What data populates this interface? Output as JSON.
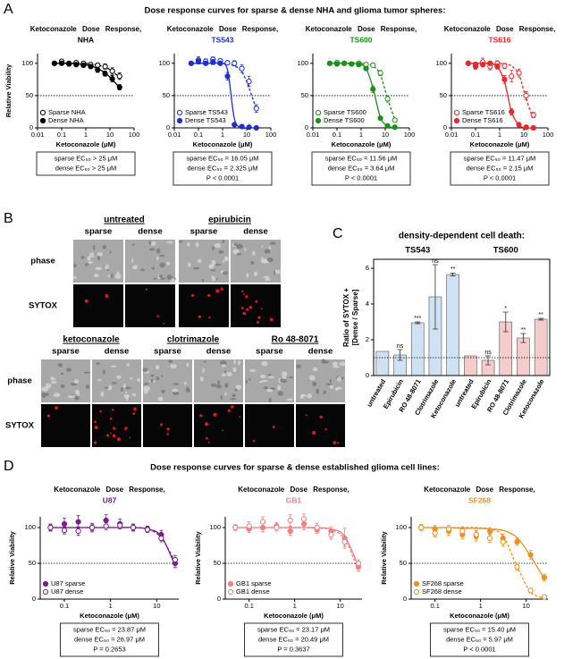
{
  "figure": {
    "panel_labels": [
      "A",
      "B",
      "C",
      "D"
    ],
    "heading_A": "Dose response curves for sparse & dense NHA and glioma tumor spheres:",
    "heading_D": "Dose response curves for sparse & dense established glioma cell lines:",
    "panel_B": {
      "rows": [
        "phase",
        "SYTOX"
      ],
      "columns": [
        "sparse",
        "dense"
      ],
      "treatments": [
        "untreated",
        "epirubicin",
        "ketoconazole",
        "clotrimazole",
        "Ro 48-8071"
      ]
    }
  },
  "chart_data": [
    {
      "type": "dose",
      "title": "Ketoconazole Dose Response,",
      "subtitle": "NHA",
      "subtitle_color": "#000000",
      "xlabel": "Ketoconazole (μM)",
      "ylabel": "Relative Viability",
      "log_x": true,
      "xlim": [
        0.01,
        100
      ],
      "xticks": [
        0.01,
        0.1,
        1,
        10,
        100
      ],
      "ylim": [
        0,
        115
      ],
      "yticks": [
        0,
        50,
        100
      ],
      "reference_line": 50,
      "legend": "lower left",
      "x": [
        0.05,
        0.1,
        0.2,
        0.4,
        0.8,
        1.6,
        3.1,
        6.3,
        12.5,
        25
      ],
      "series": [
        {
          "name": "Sparse NHA",
          "color": "#000000",
          "marker": "open",
          "dashed": true,
          "values": [
            100,
            103,
            100,
            101,
            100,
            98,
            97,
            95,
            88,
            80
          ],
          "errors": [
            2,
            3,
            2,
            3,
            2,
            3,
            3,
            4,
            5,
            5
          ],
          "fit": [
            100,
            100,
            100,
            100,
            100,
            99,
            97,
            94,
            88,
            78
          ]
        },
        {
          "name": "Dense NHA",
          "color": "#000000",
          "marker": "filled",
          "dashed": false,
          "values": [
            100,
            100,
            99,
            98,
            97,
            95,
            90,
            84,
            76,
            63
          ],
          "errors": [
            2,
            2,
            3,
            2,
            3,
            3,
            4,
            4,
            5,
            4
          ],
          "fit": [
            100,
            100,
            100,
            99,
            98,
            96,
            92,
            85,
            75,
            62
          ]
        }
      ],
      "annotations": [
        "sparse EC₅₀ > 25 μM",
        "dense EC₅₀ > 25 μM"
      ]
    },
    {
      "type": "dose",
      "title": "Ketoconazole Dose Response,",
      "subtitle": "TS543",
      "subtitle_color": "#1f2fd0",
      "xlabel": "Ketoconazole (μM)",
      "log_x": true,
      "xlim": [
        0.01,
        100
      ],
      "xticks": [
        0.01,
        0.1,
        1,
        10,
        100
      ],
      "ylim": [
        0,
        115
      ],
      "yticks": [
        0,
        50,
        100
      ],
      "reference_line": 50,
      "legend": "lower left",
      "x": [
        0.05,
        0.1,
        0.2,
        0.4,
        0.8,
        1.6,
        3.1,
        6.3,
        12.5,
        25
      ],
      "series": [
        {
          "name": "Sparse TS543",
          "color": "#1f2fd0",
          "marker": "open",
          "dashed": true,
          "values": [
            100,
            105,
            103,
            106,
            104,
            101,
            100,
            92,
            72,
            30
          ],
          "errors": [
            3,
            5,
            4,
            4,
            3,
            3,
            4,
            6,
            8,
            6
          ],
          "fit": [
            100,
            100,
            100,
            100,
            100,
            99,
            96,
            87,
            62,
            29
          ]
        },
        {
          "name": "Dense TS543",
          "color": "#1f2fd0",
          "marker": "filled",
          "dashed": false,
          "values": [
            100,
            103,
            100,
            102,
            100,
            80,
            5,
            2,
            1,
            0
          ],
          "errors": [
            3,
            4,
            3,
            4,
            3,
            6,
            2,
            1,
            1,
            1
          ],
          "fit": [
            100,
            100,
            100,
            100,
            100,
            90,
            14,
            0,
            0,
            0
          ]
        }
      ],
      "annotations": [
        "sparse EC₅₀ = 16.05 μM",
        "dense EC₅₀ = 2.325 μM",
        "P < 0.0001"
      ]
    },
    {
      "type": "dose",
      "title": "Ketoconazole Dose Response,",
      "subtitle": "TS600",
      "subtitle_color": "#1a8f1a",
      "xlabel": "Ketoconazole (μM)",
      "log_x": true,
      "xlim": [
        0.01,
        100
      ],
      "xticks": [
        0.01,
        0.1,
        1,
        10,
        100
      ],
      "ylim": [
        0,
        115
      ],
      "yticks": [
        0,
        50,
        100
      ],
      "reference_line": 50,
      "legend": "lower left",
      "x": [
        0.05,
        0.1,
        0.2,
        0.4,
        0.8,
        1.6,
        3.1,
        6.3,
        12.5,
        25
      ],
      "series": [
        {
          "name": "Sparse TS600",
          "color": "#1a8f1a",
          "marker": "open",
          "dashed": true,
          "values": [
            100,
            101,
            100,
            99,
            100,
            98,
            97,
            85,
            45,
            12
          ],
          "errors": [
            2,
            3,
            2,
            2,
            3,
            3,
            3,
            4,
            5,
            3
          ],
          "fit": [
            100,
            100,
            100,
            100,
            100,
            99,
            96,
            82,
            45,
            13
          ]
        },
        {
          "name": "Dense TS600",
          "color": "#1a8f1a",
          "marker": "filled",
          "dashed": false,
          "values": [
            100,
            99,
            100,
            99,
            98,
            92,
            60,
            15,
            3,
            1
          ],
          "errors": [
            2,
            3,
            2,
            3,
            2,
            3,
            5,
            3,
            1,
            1
          ],
          "fit": [
            100,
            100,
            100,
            100,
            99,
            92,
            62,
            16,
            3,
            0
          ]
        }
      ],
      "annotations": [
        "sparse EC₅₀ = 11.56 μM",
        "dense EC₅₀ = 3.64 μM",
        "P < 0.0001"
      ]
    },
    {
      "type": "dose",
      "title": "Ketoconazole Dose Response,",
      "subtitle": "TS616",
      "subtitle_color": "#e8282c",
      "xlabel": "Ketoconazole (μM)",
      "log_x": true,
      "xlim": [
        0.01,
        100
      ],
      "xticks": [
        0.01,
        0.1,
        1,
        10,
        100
      ],
      "ylim": [
        0,
        115
      ],
      "yticks": [
        0,
        50,
        100
      ],
      "reference_line": 50,
      "legend": "lower left",
      "x": [
        0.05,
        0.1,
        0.2,
        0.4,
        0.8,
        1.6,
        3.1,
        6.3,
        12.5,
        25
      ],
      "series": [
        {
          "name": "Sparse TS616",
          "color": "#e8282c",
          "marker": "open",
          "dashed": true,
          "values": [
            100,
            98,
            102,
            95,
            100,
            96,
            80,
            85,
            50,
            20
          ],
          "errors": [
            3,
            4,
            6,
            5,
            4,
            4,
            9,
            6,
            6,
            4
          ],
          "fit": [
            100,
            100,
            100,
            100,
            100,
            99,
            96,
            82,
            45,
            13
          ]
        },
        {
          "name": "Dense TS616",
          "color": "#e8282c",
          "marker": "filled",
          "dashed": false,
          "values": [
            100,
            95,
            98,
            100,
            95,
            75,
            25,
            5,
            1,
            0
          ],
          "errors": [
            3,
            4,
            3,
            3,
            4,
            6,
            5,
            2,
            1,
            1
          ],
          "fit": [
            100,
            100,
            100,
            99,
            95,
            71,
            25,
            4,
            0,
            0
          ]
        }
      ],
      "annotations": [
        "sparse EC₅₀ = 11.47 μM",
        "dense EC₅₀ = 2.15 μM",
        "P < 0.0001"
      ]
    },
    {
      "type": "bar",
      "title": "density-dependent cell death:",
      "ylabel": [
        "Ratio of SYTOX +",
        "[Dense / Sparse]"
      ],
      "categories": [
        "untreated",
        "Epirubicin",
        "RO 48-8071",
        "Clotrimazole",
        "Ketoconazole"
      ],
      "ylim": [
        0,
        6.5
      ],
      "yticks": [
        0,
        2,
        4,
        6
      ],
      "reference_line": 1,
      "series": [
        {
          "name": "TS543",
          "color": "#cfe2f3",
          "values": [
            1.35,
            1.15,
            2.95,
            4.4,
            5.65
          ],
          "errors": [
            null,
            0.3,
            0.05,
            1.8,
            0.08
          ],
          "significance": [
            null,
            "ns",
            "***",
            "ns",
            "**"
          ]
        },
        {
          "name": "TS600",
          "color": "#f4cccc",
          "values": [
            1.1,
            0.85,
            3.0,
            2.1,
            3.15
          ],
          "errors": [
            null,
            0.25,
            0.55,
            0.25,
            0.05
          ],
          "significance": [
            null,
            "ns",
            "*",
            "**",
            "**"
          ]
        }
      ]
    },
    {
      "type": "dose",
      "title": "Ketoconazole Dose Response,",
      "subtitle": "U87",
      "subtitle_color": "#7b1f8c",
      "xlabel": "Ketoconazole (μM)",
      "ylabel": "Relative Viability",
      "log_x": true,
      "xlim": [
        0.03,
        30
      ],
      "xticks": [
        0.1,
        1,
        10
      ],
      "ylim": [
        0,
        115
      ],
      "yticks": [
        0,
        50,
        100
      ],
      "reference_line": 50,
      "legend": "lower left",
      "x": [
        0.05,
        0.1,
        0.2,
        0.4,
        0.8,
        1.6,
        3.1,
        6.3,
        12.5,
        25
      ],
      "series": [
        {
          "name": "U87 sparse",
          "color": "#7b1f8c",
          "marker": "filled",
          "dashed": false,
          "values": [
            100,
            105,
            108,
            100,
            110,
            105,
            100,
            98,
            90,
            50
          ],
          "errors": [
            5,
            8,
            9,
            6,
            8,
            7,
            5,
            4,
            6,
            6
          ],
          "fit": [
            100,
            100,
            100,
            100,
            100,
            100,
            100,
            98,
            88,
            47
          ]
        },
        {
          "name": "U87 dense",
          "color": "#7b1f8c",
          "marker": "open",
          "dashed": true,
          "values": [
            100,
            96,
            95,
            100,
            102,
            103,
            100,
            97,
            85,
            55
          ],
          "errors": [
            4,
            5,
            6,
            4,
            5,
            5,
            4,
            4,
            5,
            6
          ],
          "fit": [
            100,
            100,
            100,
            100,
            100,
            100,
            100,
            98,
            86,
            52
          ]
        }
      ],
      "annotations": [
        "sparse EC₅₀ = 23.87 μM",
        "dense EC₅₀ = 26.97 μM",
        "P = 0.2653"
      ]
    },
    {
      "type": "dose",
      "title": "Ketoconazole Dose Response,",
      "subtitle": "GB1",
      "subtitle_color": "#f08080",
      "xlabel": "Ketoconazole (μM)",
      "ylabel": "Relative Viability",
      "log_x": true,
      "xlim": [
        0.03,
        30
      ],
      "xticks": [
        0.1,
        1,
        10
      ],
      "ylim": [
        0,
        115
      ],
      "yticks": [
        0,
        50,
        100
      ],
      "reference_line": 50,
      "legend": "lower left",
      "x": [
        0.05,
        0.1,
        0.2,
        0.4,
        0.8,
        1.6,
        3.1,
        6.3,
        12.5,
        25
      ],
      "series": [
        {
          "name": "GB1 sparse",
          "color": "#f08080",
          "marker": "filled",
          "dashed": false,
          "values": [
            100,
            98,
            100,
            102,
            95,
            105,
            97,
            95,
            85,
            45
          ],
          "errors": [
            4,
            5,
            6,
            5,
            6,
            8,
            5,
            6,
            14,
            6
          ],
          "fit": [
            100,
            100,
            100,
            100,
            100,
            100,
            100,
            98,
            88,
            46
          ]
        },
        {
          "name": "GB1 dense",
          "color": "#f08080",
          "marker": "open",
          "dashed": true,
          "values": [
            100,
            102,
            108,
            100,
            110,
            112,
            100,
            90,
            80,
            50
          ],
          "errors": [
            4,
            6,
            7,
            5,
            8,
            7,
            6,
            6,
            6,
            5
          ],
          "fit": [
            100,
            100,
            100,
            100,
            100,
            100,
            99,
            97,
            84,
            40
          ]
        }
      ],
      "annotations": [
        "sparse EC₅₀ = 23.17 μM",
        "dense EC₅₀ = 20.49 μM",
        "P = 0.3637"
      ]
    },
    {
      "type": "dose",
      "title": "Ketoconazole Dose Response,",
      "subtitle": "SF268",
      "subtitle_color": "#f0901e",
      "xlabel": "Ketoconazole (μM)",
      "ylabel": "Relative Viability",
      "log_x": true,
      "xlim": [
        0.03,
        30
      ],
      "xticks": [
        0.1,
        1,
        10
      ],
      "ylim": [
        0,
        115
      ],
      "yticks": [
        0,
        50,
        100
      ],
      "reference_line": 50,
      "legend": "lower left",
      "x": [
        0.05,
        0.1,
        0.2,
        0.4,
        0.8,
        1.6,
        3.1,
        6.3,
        12.5,
        25
      ],
      "series": [
        {
          "name": "SF268 sparse",
          "color": "#f0901e",
          "marker": "filled",
          "dashed": false,
          "values": [
            100,
            98,
            95,
            90,
            88,
            95,
            85,
            80,
            62,
            30
          ],
          "errors": [
            4,
            5,
            6,
            6,
            7,
            5,
            6,
            5,
            6,
            5
          ],
          "fit": [
            100,
            100,
            100,
            99,
            99,
            98,
            96,
            86,
            60,
            28
          ]
        },
        {
          "name": "SF268 dense",
          "color": "#f0901e",
          "marker": "open",
          "dashed": true,
          "values": [
            100,
            92,
            98,
            95,
            90,
            85,
            80,
            45,
            12,
            3
          ],
          "errors": [
            4,
            5,
            5,
            6,
            6,
            6,
            6,
            5,
            3,
            1
          ],
          "fit": [
            100,
            100,
            100,
            100,
            100,
            98,
            88,
            46,
            10,
            1
          ]
        }
      ],
      "annotations": [
        "sparse EC₅₀ = 15.40 μM",
        "dense EC₅₀ = 5.97 μM",
        "P < 0.0001"
      ]
    }
  ]
}
